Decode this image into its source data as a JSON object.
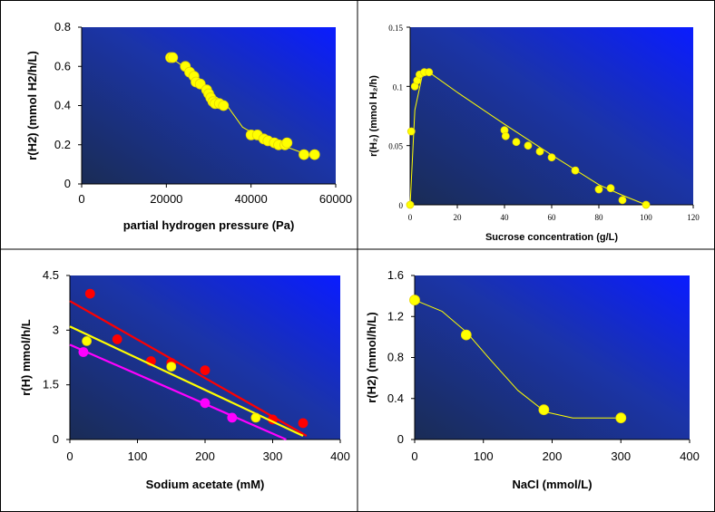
{
  "chart_data": [
    {
      "type": "scatter",
      "title": "",
      "xlabel": "partial hydrogen pressure (Pa)",
      "ylabel": "r(H2) (mmol H2/h/L)",
      "xlim": [
        0,
        60000
      ],
      "ylim": [
        0,
        0.8
      ],
      "xticks": [
        "0",
        "20000",
        "40000",
        "60000"
      ],
      "yticks": [
        "0",
        "0.2",
        "0.4",
        "0.6",
        "0.8"
      ],
      "grid": false,
      "series": [
        {
          "color": "#ffff00",
          "points": [
            [
              21000,
              0.645
            ],
            [
              21500,
              0.645
            ],
            [
              24500,
              0.6
            ],
            [
              25500,
              0.57
            ],
            [
              26500,
              0.55
            ],
            [
              27000,
              0.52
            ],
            [
              28000,
              0.51
            ],
            [
              29500,
              0.48
            ],
            [
              30000,
              0.46
            ],
            [
              30500,
              0.44
            ],
            [
              31000,
              0.42
            ],
            [
              31500,
              0.41
            ],
            [
              32500,
              0.41
            ],
            [
              33500,
              0.4
            ],
            [
              40000,
              0.25
            ],
            [
              41500,
              0.25
            ],
            [
              43000,
              0.23
            ],
            [
              44000,
              0.22
            ],
            [
              45500,
              0.21
            ],
            [
              46500,
              0.2
            ],
            [
              48000,
              0.2
            ],
            [
              48500,
              0.21
            ],
            [
              52500,
              0.15
            ],
            [
              55000,
              0.15
            ]
          ],
          "fit": [
            [
              21000,
              0.645
            ],
            [
              26000,
              0.57
            ],
            [
              30000,
              0.47
            ],
            [
              34000,
              0.41
            ],
            [
              38000,
              0.29
            ],
            [
              42000,
              0.24
            ],
            [
              47000,
              0.2
            ],
            [
              52000,
              0.16
            ],
            [
              55000,
              0.14
            ]
          ]
        }
      ]
    },
    {
      "type": "scatter",
      "title": "",
      "xlabel": "Sucrose concentration (g/L)",
      "ylabel": "r(H₂)  (mmol H₂/h)",
      "xlim": [
        0,
        120
      ],
      "ylim": [
        0,
        0.15
      ],
      "xticks": [
        "0",
        "20",
        "40",
        "60",
        "80",
        "100",
        "120"
      ],
      "yticks": [
        "0",
        "0.05",
        "0.1",
        "0.15"
      ],
      "grid": false,
      "series": [
        {
          "color": "#ffff00",
          "points": [
            [
              0,
              0
            ],
            [
              0.5,
              0.062
            ],
            [
              2,
              0.1
            ],
            [
              3,
              0.105
            ],
            [
              4,
              0.11
            ],
            [
              6,
              0.112
            ],
            [
              8,
              0.112
            ],
            [
              40,
              0.063
            ],
            [
              40.5,
              0.058
            ],
            [
              45,
              0.053
            ],
            [
              50,
              0.05
            ],
            [
              55,
              0.045
            ],
            [
              60,
              0.04
            ],
            [
              70,
              0.029
            ],
            [
              80,
              0.013
            ],
            [
              85,
              0.014
            ],
            [
              90,
              0.004
            ],
            [
              100,
              0.0
            ]
          ],
          "fit": [
            [
              0,
              0
            ],
            [
              2,
              0.08
            ],
            [
              5,
              0.108
            ],
            [
              8,
              0.112
            ],
            [
              20,
              0.095
            ],
            [
              40,
              0.068
            ],
            [
              60,
              0.042
            ],
            [
              80,
              0.017
            ],
            [
              90,
              0.008
            ],
            [
              100,
              0.0
            ]
          ]
        }
      ]
    },
    {
      "type": "scatter",
      "title": "",
      "xlabel": "Sodium acetate (mM)",
      "ylabel": "r(H) mmol/h/L",
      "xlim": [
        0,
        400
      ],
      "ylim": [
        0,
        4.5
      ],
      "xticks": [
        "0",
        "100",
        "200",
        "300",
        "400"
      ],
      "yticks": [
        "0",
        "1.5",
        "3",
        "4.5"
      ],
      "grid": false,
      "series": [
        {
          "color": "#ff0000",
          "points": [
            [
              30,
              4.0
            ],
            [
              70,
              2.75
            ],
            [
              120,
              2.15
            ],
            [
              150,
              2.1
            ],
            [
              200,
              1.9
            ],
            [
              300,
              0.55
            ],
            [
              345,
              0.45
            ]
          ],
          "fit": [
            [
              0,
              3.8
            ],
            [
              350,
              0.1
            ]
          ]
        },
        {
          "color": "#ffff00",
          "points": [
            [
              25,
              2.7
            ],
            [
              150,
              2.0
            ],
            [
              275,
              0.6
            ]
          ],
          "fit": [
            [
              0,
              3.1
            ],
            [
              345,
              0.1
            ]
          ]
        },
        {
          "color": "#ff00ff",
          "points": [
            [
              20,
              2.4
            ],
            [
              200,
              1.0
            ],
            [
              240,
              0.6
            ]
          ],
          "fit": [
            [
              0,
              2.6
            ],
            [
              320,
              0.0
            ]
          ]
        }
      ]
    },
    {
      "type": "scatter",
      "title": "",
      "xlabel": "NaCl (mmol/L)",
      "ylabel": "r(H2) (mmol/h/L)",
      "xlim": [
        0,
        400
      ],
      "ylim": [
        0,
        1.6
      ],
      "xticks": [
        "0",
        "100",
        "200",
        "300",
        "400"
      ],
      "yticks": [
        "0",
        "0.4",
        "0.8",
        "1.2",
        "1.6"
      ],
      "grid": false,
      "series": [
        {
          "color": "#ffff00",
          "points": [
            [
              0,
              1.36
            ],
            [
              75,
              1.02
            ],
            [
              188,
              0.29
            ],
            [
              300,
              0.21
            ]
          ],
          "fit": [
            [
              0,
              1.36
            ],
            [
              40,
              1.25
            ],
            [
              75,
              1.05
            ],
            [
              110,
              0.78
            ],
            [
              150,
              0.48
            ],
            [
              190,
              0.27
            ],
            [
              230,
              0.21
            ],
            [
              300,
              0.21
            ]
          ]
        }
      ]
    }
  ]
}
